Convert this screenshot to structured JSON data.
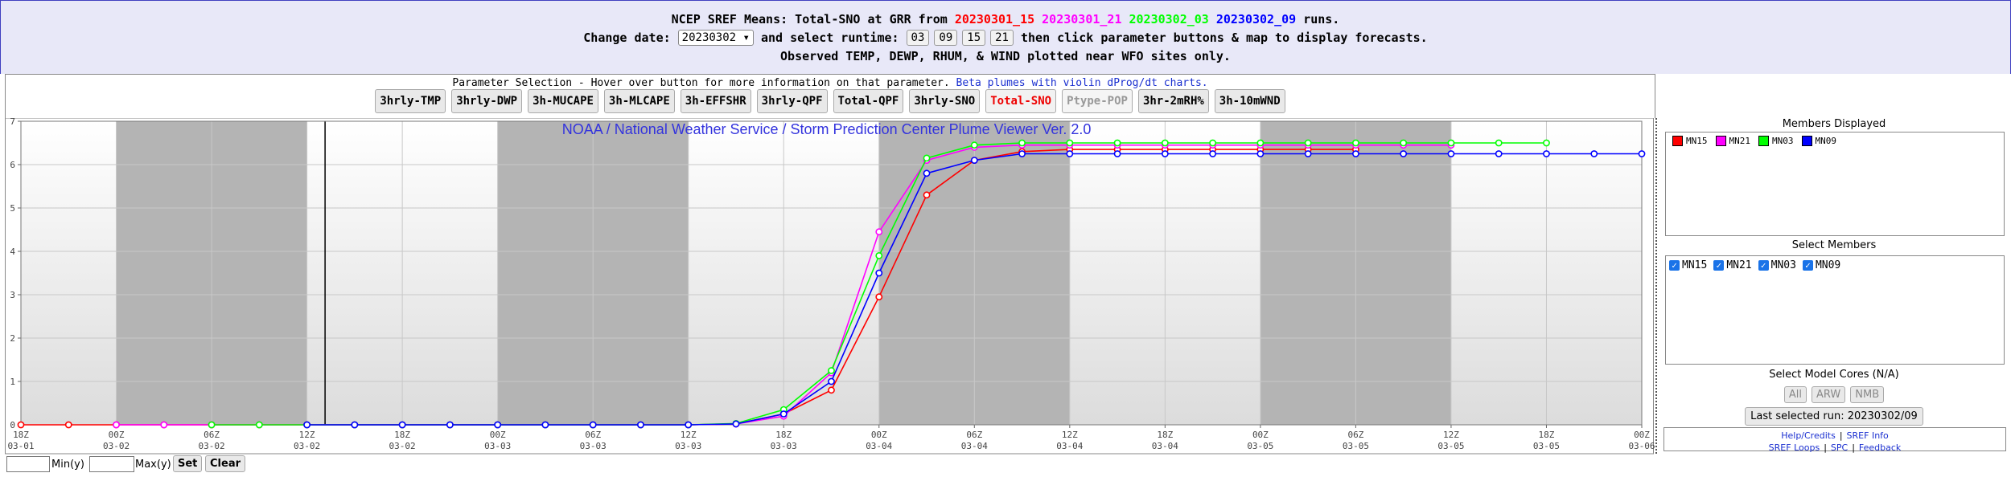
{
  "header": {
    "title_prefix": "NCEP SREF Means: Total-SNO at GRR from",
    "runs": [
      "20230301_15",
      "20230301_21",
      "20230302_03",
      "20230302_09"
    ],
    "title_suffix": "runs.",
    "change_date_label": "Change date:",
    "date_selected": "20230302",
    "runtime_label": "and select runtime:",
    "runtimes": [
      "03",
      "09",
      "15",
      "21"
    ],
    "runtime_suffix": "then click parameter buttons & map to display forecasts.",
    "note": "Observed TEMP, DEWP, RHUM, & WIND plotted near WFO sites only."
  },
  "parameters": {
    "intro": "Parameter Selection - Hover over button for more information on that parameter.",
    "link": "Beta plumes with violin dProg/dt charts.",
    "buttons": [
      {
        "label": "3hrly-TMP",
        "state": "normal"
      },
      {
        "label": "3hrly-DWP",
        "state": "normal"
      },
      {
        "label": "3h-MUCAPE",
        "state": "normal"
      },
      {
        "label": "3h-MLCAPE",
        "state": "normal"
      },
      {
        "label": "3h-EFFSHR",
        "state": "normal"
      },
      {
        "label": "3hrly-QPF",
        "state": "normal"
      },
      {
        "label": "Total-QPF",
        "state": "normal"
      },
      {
        "label": "3hrly-SNO",
        "state": "normal"
      },
      {
        "label": "Total-SNO",
        "state": "active"
      },
      {
        "label": "Ptype-POP",
        "state": "disabled"
      },
      {
        "label": "3hr-2mRH%",
        "state": "normal"
      },
      {
        "label": "3h-10mWND",
        "state": "normal"
      }
    ]
  },
  "chart_data": {
    "type": "line",
    "title": "NOAA / National Weather Service / Storm Prediction Center Plume Viewer Ver. 2.0",
    "categories": [
      {
        "hour": "18Z",
        "date": "03-01"
      },
      null,
      {
        "hour": "00Z",
        "date": "03-02"
      },
      null,
      {
        "hour": "06Z",
        "date": "03-02"
      },
      null,
      {
        "hour": "12Z",
        "date": "03-02"
      },
      null,
      {
        "hour": "18Z",
        "date": "03-02"
      },
      null,
      {
        "hour": "00Z",
        "date": "03-03"
      },
      null,
      {
        "hour": "06Z",
        "date": "03-03"
      },
      null,
      {
        "hour": "12Z",
        "date": "03-03"
      },
      null,
      {
        "hour": "18Z",
        "date": "03-03"
      },
      null,
      {
        "hour": "00Z",
        "date": "03-04"
      },
      null,
      {
        "hour": "06Z",
        "date": "03-04"
      },
      null,
      {
        "hour": "12Z",
        "date": "03-04"
      },
      null,
      {
        "hour": "18Z",
        "date": "03-04"
      },
      null,
      {
        "hour": "00Z",
        "date": "03-05"
      },
      null,
      {
        "hour": "06Z",
        "date": "03-05"
      },
      null,
      {
        "hour": "12Z",
        "date": "03-05"
      },
      null,
      {
        "hour": "18Z",
        "date": "03-05"
      },
      null,
      {
        "hour": "00Z",
        "date": "03-06"
      }
    ],
    "series": [
      {
        "name": "MN15",
        "color": "#ff0000",
        "values": [
          0,
          0,
          0,
          0,
          0,
          0,
          0,
          0,
          0,
          0,
          0,
          0,
          0,
          0,
          0,
          0.02,
          0.25,
          0.8,
          2.95,
          5.3,
          6.1,
          6.3,
          6.35,
          6.35,
          6.35,
          6.35,
          6.35,
          6.35,
          6.35,
          null,
          null,
          null,
          null,
          null,
          null
        ]
      },
      {
        "name": "MN21",
        "color": "#ff00ff",
        "values": [
          null,
          null,
          0,
          0,
          0,
          0,
          0,
          0,
          0,
          0,
          0,
          0,
          0,
          0,
          0,
          0.02,
          0.2,
          1.2,
          4.45,
          6.1,
          6.4,
          6.45,
          6.45,
          6.45,
          6.45,
          6.45,
          6.45,
          6.45,
          6.45,
          6.45,
          6.45,
          null,
          null,
          null,
          null
        ]
      },
      {
        "name": "MN03",
        "color": "#00ff00",
        "values": [
          null,
          null,
          null,
          null,
          0,
          0,
          0,
          0,
          0,
          0,
          0,
          0,
          0,
          0,
          0,
          0.03,
          0.35,
          1.25,
          3.9,
          6.15,
          6.45,
          6.5,
          6.5,
          6.5,
          6.5,
          6.5,
          6.5,
          6.5,
          6.5,
          6.5,
          6.5,
          6.5,
          6.5,
          null,
          null
        ]
      },
      {
        "name": "MN09",
        "color": "#0000ff",
        "values": [
          null,
          null,
          null,
          null,
          null,
          null,
          0,
          0,
          0,
          0,
          0,
          0,
          0,
          0,
          0,
          0.02,
          0.25,
          1.0,
          3.5,
          5.8,
          6.1,
          6.25,
          6.25,
          6.25,
          6.25,
          6.25,
          6.25,
          6.25,
          6.25,
          6.25,
          6.25,
          6.25,
          6.25,
          6.25,
          6.25
        ]
      }
    ],
    "ylim": [
      0,
      7
    ],
    "yticks": [
      0,
      1,
      2,
      3,
      4,
      5,
      6,
      7
    ],
    "grid": true
  },
  "sidebar": {
    "members_title": "Members Displayed",
    "select_title": "Select Members",
    "cores_title": "Select Model Cores (N/A)",
    "cores": [
      "All",
      "ARW",
      "NMB"
    ],
    "last_run": "Last selected run: 20230302/09",
    "separator": "|",
    "links": [
      [
        "Help/Credits",
        "SREF Info"
      ],
      [
        "SREF Loops",
        "SPC",
        "Feedback"
      ]
    ]
  },
  "footer": {
    "min_label": "Min(y)",
    "max_label": "Max(y)",
    "set": "Set",
    "clear": "Clear"
  }
}
